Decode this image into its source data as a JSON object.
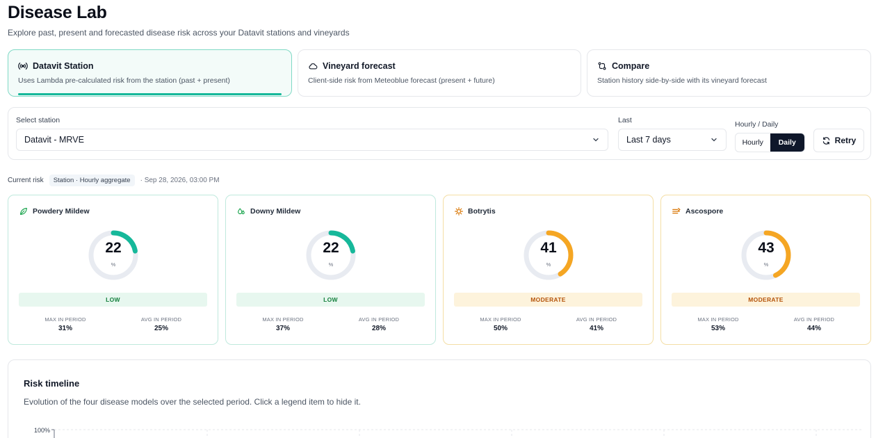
{
  "header": {
    "title": "Disease Lab",
    "subtitle": "Explore past, present and forecasted disease risk across your Datavit stations and vineyards"
  },
  "modes": [
    {
      "label": "Datavit Station",
      "description": "Uses Lambda pre-calculated risk from the station (past + present)",
      "icon": "broadcast-icon",
      "active": true
    },
    {
      "label": "Vineyard forecast",
      "description": "Client-side risk from Meteoblue forecast (present + future)",
      "icon": "cloud-icon",
      "active": false
    },
    {
      "label": "Compare",
      "description": "Station history side-by-side with its vineyard forecast",
      "icon": "compare-icon",
      "active": false
    }
  ],
  "filters": {
    "station_label": "Select station",
    "station_value": "Datavit - MRVE",
    "period_label": "Last",
    "period_value": "Last 7 days",
    "granularity_label": "Hourly / Daily",
    "granularity_options": [
      "Hourly",
      "Daily"
    ],
    "granularity_selected": "Daily",
    "retry_label": "Retry"
  },
  "current": {
    "label": "Current risk",
    "source_chip": "Station · Hourly aggregate",
    "timestamp": "· Sep 28, 2026, 03:00 PM"
  },
  "risks": [
    {
      "name": "Powdery Mildew",
      "icon": "leaf-icon",
      "value": "22",
      "unit": "%",
      "level": "LOW",
      "level_kind": "low",
      "color": "#16b89a",
      "max_label": "MAX IN PERIOD",
      "max": "31%",
      "avg_label": "AVG IN PERIOD",
      "avg": "25%"
    },
    {
      "name": "Downy Mildew",
      "icon": "droplets-icon",
      "value": "22",
      "unit": "%",
      "level": "LOW",
      "level_kind": "low",
      "color": "#16b89a",
      "max_label": "MAX IN PERIOD",
      "max": "37%",
      "avg_label": "AVG IN PERIOD",
      "avg": "28%"
    },
    {
      "name": "Botrytis",
      "icon": "bug-icon",
      "value": "41",
      "unit": "%",
      "level": "MODERATE",
      "level_kind": "mod",
      "color": "#f5a623",
      "max_label": "MAX IN PERIOD",
      "max": "50%",
      "avg_label": "AVG IN PERIOD",
      "avg": "41%"
    },
    {
      "name": "Ascospore",
      "icon": "spore-icon",
      "value": "43",
      "unit": "%",
      "level": "MODERATE",
      "level_kind": "mod",
      "color": "#f5a623",
      "max_label": "MAX IN PERIOD",
      "max": "53%",
      "avg_label": "AVG IN PERIOD",
      "avg": "44%"
    }
  ],
  "timeline": {
    "title": "Risk timeline",
    "subtitle": "Evolution of the four disease models over the selected period. Click a legend item to hide it.",
    "y_top_tick": "100%"
  },
  "colors": {
    "accent": "#16b89a",
    "low": "#16b89a",
    "moderate": "#f5a623",
    "dark": "#0f172a"
  }
}
